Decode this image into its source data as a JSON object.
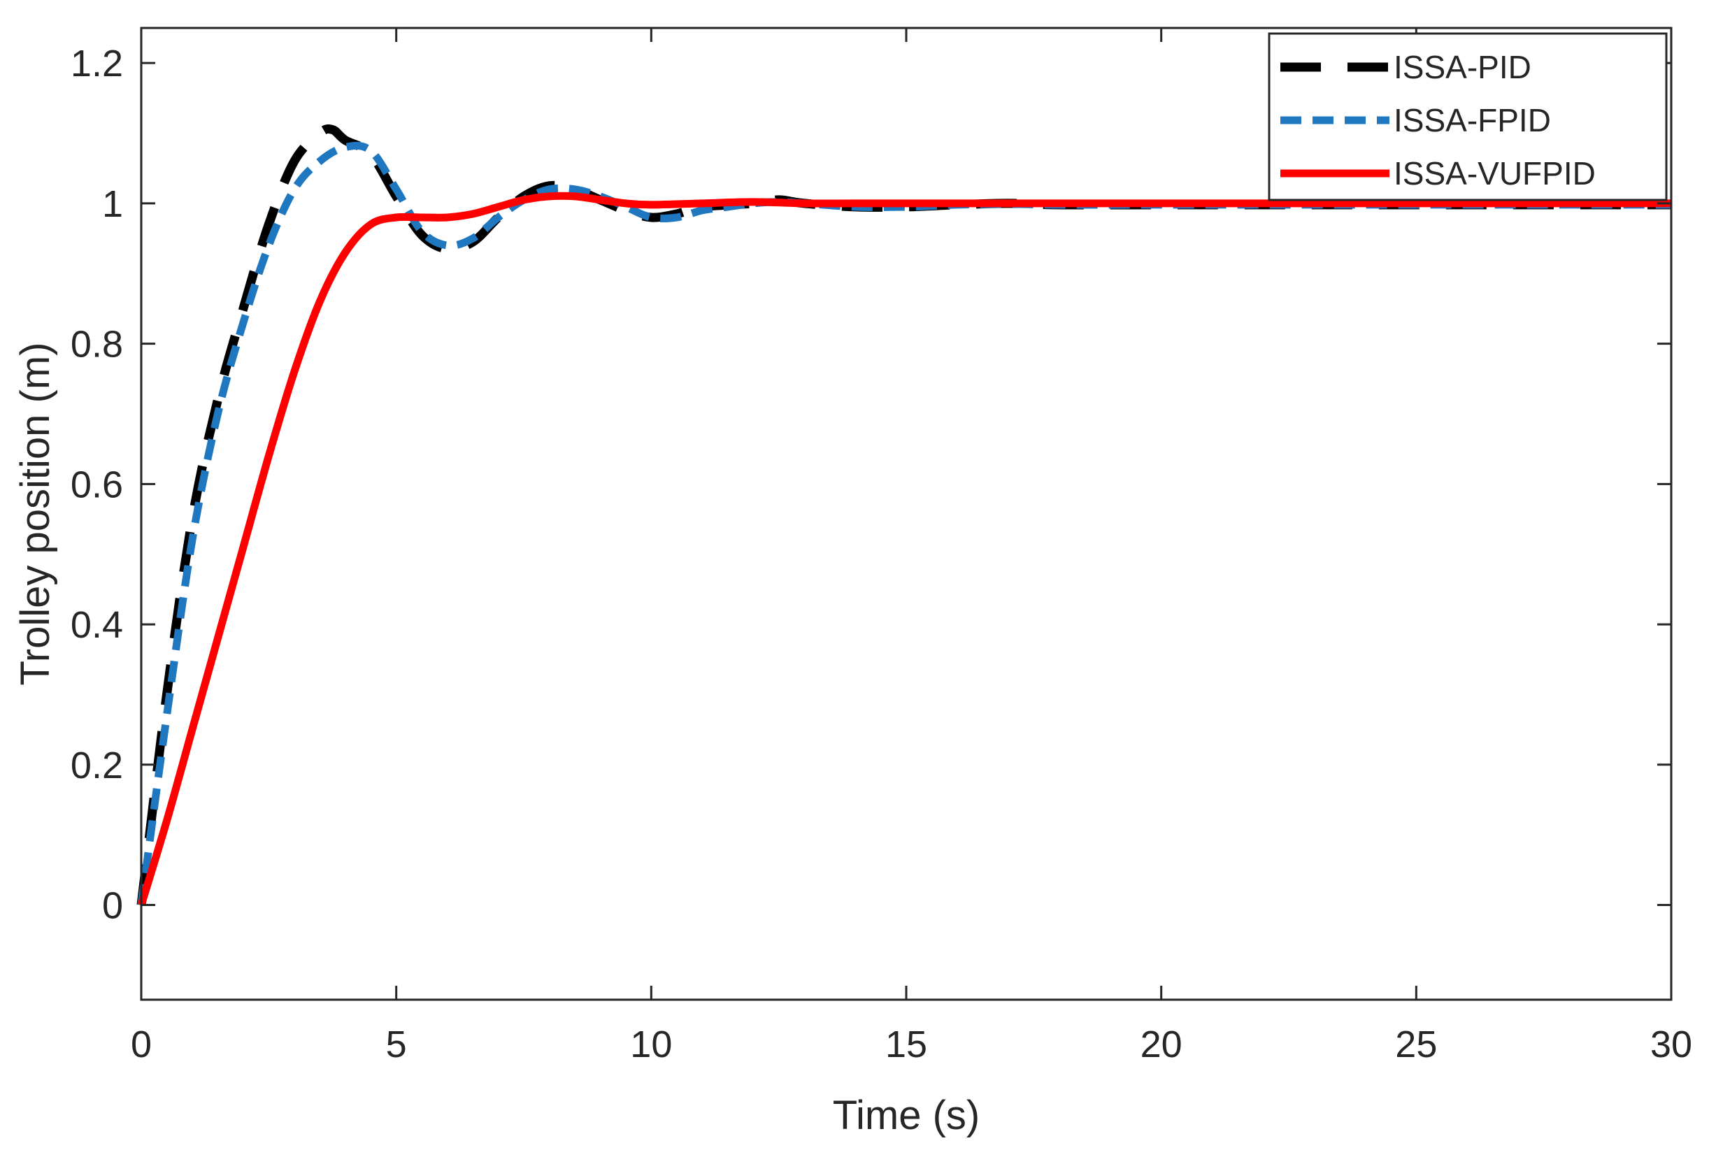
{
  "chart_data": {
    "type": "line",
    "title": "",
    "xlabel": "Time (s)",
    "ylabel": "Trolley position (m)",
    "xlim": [
      0,
      30
    ],
    "ylim": [
      -0.135,
      1.25
    ],
    "xticks": [
      0,
      5,
      10,
      15,
      20,
      25,
      30
    ],
    "xtick_labels": [
      "0",
      "5",
      "10",
      "15",
      "20",
      "25",
      "30"
    ],
    "yticks": [
      0,
      0.2,
      0.4,
      0.6,
      0.8,
      1,
      1.2
    ],
    "ytick_labels": [
      "0",
      "0.2",
      "0.4",
      "0.6",
      "0.8",
      "1",
      "1.2"
    ],
    "grid": false,
    "legend_position": "top-right",
    "series": [
      {
        "name": "ISSA-PID",
        "color": "#000000",
        "style": "long-dash",
        "x": [
          0,
          0.5,
          1,
          1.5,
          2,
          2.5,
          3,
          3.5,
          3.75,
          4,
          4.5,
          5,
          5.5,
          6,
          6.5,
          7,
          7.5,
          8,
          8.5,
          9,
          9.5,
          10,
          10.5,
          11,
          12,
          12.5,
          13,
          14,
          15,
          16,
          17,
          18,
          20,
          22,
          25,
          30
        ],
        "values": [
          0,
          0.3,
          0.55,
          0.72,
          0.85,
          0.97,
          1.06,
          1.1,
          1.105,
          1.09,
          1.07,
          1.01,
          0.955,
          0.935,
          0.945,
          0.98,
          1.01,
          1.025,
          1.02,
          1.005,
          0.99,
          0.98,
          0.985,
          0.995,
          1.0,
          1.005,
          1.0,
          0.995,
          0.995,
          0.998,
          1.0,
          0.998,
          0.998,
          0.998,
          0.998,
          0.998
        ]
      },
      {
        "name": "ISSA-FPID",
        "color": "#1f77c0",
        "style": "dash",
        "x": [
          0,
          0.5,
          1,
          1.5,
          2,
          2.5,
          3,
          3.5,
          4,
          4.5,
          5,
          5.5,
          6,
          6.5,
          7,
          7.5,
          8,
          8.5,
          9,
          9.5,
          10,
          10.5,
          11,
          11.5,
          12,
          12.5,
          13,
          14,
          15,
          16,
          17,
          18,
          20,
          22,
          25,
          30
        ],
        "values": [
          0,
          0.27,
          0.52,
          0.7,
          0.83,
          0.94,
          1.02,
          1.06,
          1.08,
          1.075,
          1.02,
          0.96,
          0.94,
          0.95,
          0.98,
          1.005,
          1.02,
          1.02,
          1.01,
          0.995,
          0.98,
          0.98,
          0.99,
          0.995,
          1.0,
          1.002,
          1.0,
          0.995,
          0.995,
          0.998,
          0.999,
          0.998,
          0.998,
          0.998,
          0.998,
          0.998
        ]
      },
      {
        "name": "ISSA-VUFPID",
        "color": "#ff0000",
        "style": "solid",
        "x": [
          0,
          0.5,
          1,
          1.5,
          2,
          2.5,
          3,
          3.5,
          4,
          4.5,
          5,
          5.5,
          6,
          6.5,
          7,
          7.5,
          8,
          8.5,
          9,
          9.5,
          10,
          11,
          12,
          13,
          14,
          15,
          20,
          25,
          30
        ],
        "values": [
          0,
          0.12,
          0.25,
          0.38,
          0.51,
          0.64,
          0.76,
          0.86,
          0.93,
          0.97,
          0.98,
          0.98,
          0.98,
          0.985,
          0.995,
          1.005,
          1.01,
          1.01,
          1.005,
          1.0,
          0.998,
          1.0,
          1.002,
          1.0,
          1.0,
          1.0,
          1.0,
          1.0,
          1.0
        ]
      }
    ]
  }
}
